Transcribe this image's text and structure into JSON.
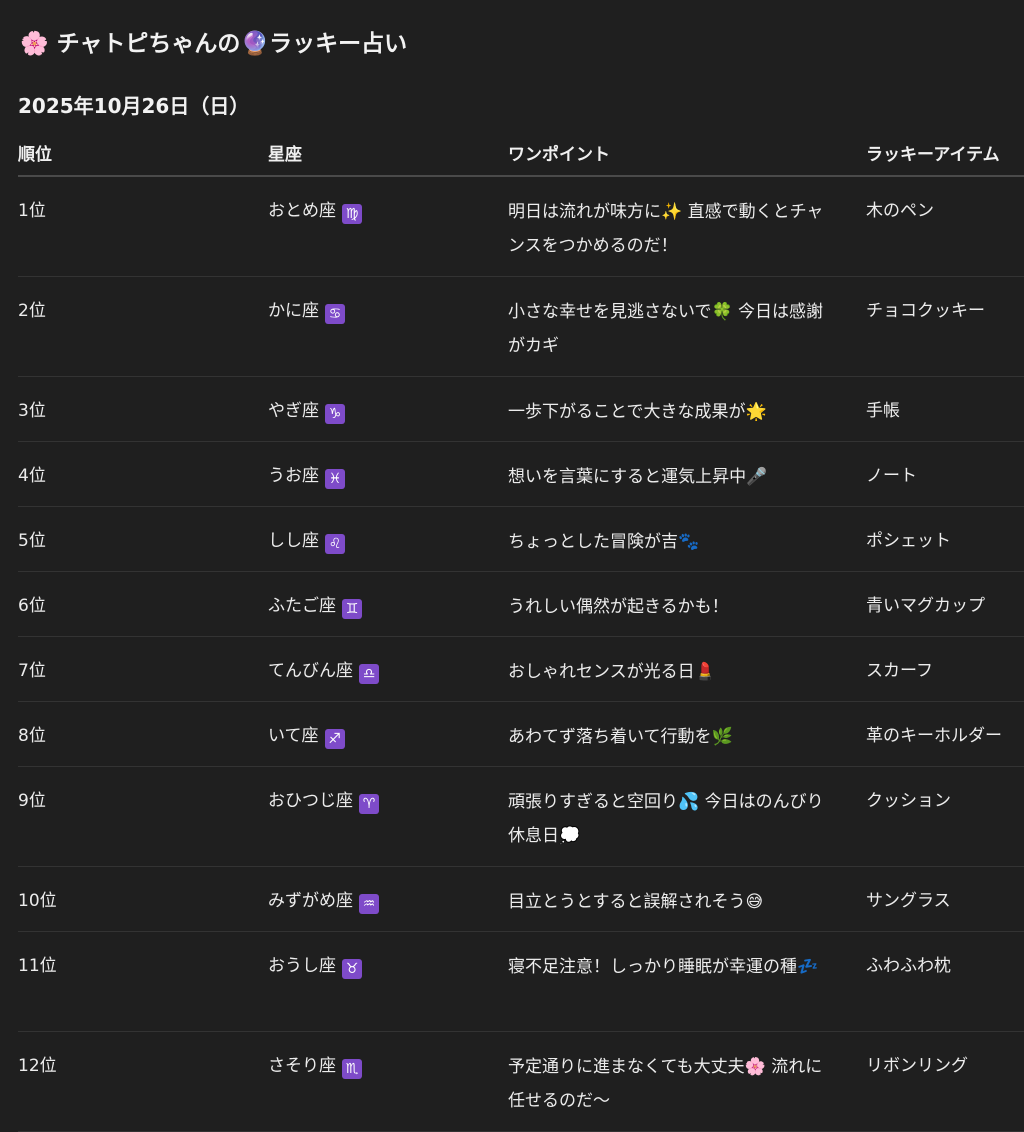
{
  "header": {
    "title_icon": "🌸",
    "title_part1": "チャトピちゃんの",
    "title_icon2": "🔮",
    "title_part2": "ラッキー占い",
    "date": "2025年10月26日（日）"
  },
  "columns": [
    "順位",
    "星座",
    "ワンポイント",
    "ラッキーアイテム"
  ],
  "rows": [
    {
      "rank": "1位",
      "sign": "おとめ座",
      "zodiac": "♍",
      "tip": "明日は流れが味方に✨ 直感で動くとチャンスをつかめるのだ！",
      "item": "木のペン"
    },
    {
      "rank": "2位",
      "sign": "かに座",
      "zodiac": "♋",
      "tip": "小さな幸せを見逃さないで🍀 今日は感謝がカギ",
      "item": "チョコクッキー"
    },
    {
      "rank": "3位",
      "sign": "やぎ座",
      "zodiac": "♑",
      "tip": "一歩下がることで大きな成果が🌟",
      "item": "手帳"
    },
    {
      "rank": "4位",
      "sign": "うお座",
      "zodiac": "♓",
      "tip": "想いを言葉にすると運気上昇中🎤",
      "item": "ノート"
    },
    {
      "rank": "5位",
      "sign": "しし座",
      "zodiac": "♌",
      "tip": "ちょっとした冒険が吉🐾",
      "item": "ポシェット"
    },
    {
      "rank": "6位",
      "sign": "ふたご座",
      "zodiac": "♊",
      "tip": "うれしい偶然が起きるかも！",
      "item": "青いマグカップ"
    },
    {
      "rank": "7位",
      "sign": "てんびん座",
      "zodiac": "♎",
      "tip": "おしゃれセンスが光る日💄",
      "item": "スカーフ"
    },
    {
      "rank": "8位",
      "sign": "いて座",
      "zodiac": "♐",
      "tip": "あわてず落ち着いて行動を🌿",
      "item": "革のキーホルダー"
    },
    {
      "rank": "9位",
      "sign": "おひつじ座",
      "zodiac": "♈",
      "tip": "頑張りすぎると空回り💦 今日はのんびり休息日💭",
      "item": "クッション"
    },
    {
      "rank": "10位",
      "sign": "みずがめ座",
      "zodiac": "♒",
      "tip": "目立とうとすると誤解されそう😅",
      "item": "サングラス"
    },
    {
      "rank": "11位",
      "sign": "おうし座",
      "zodiac": "♉",
      "tip": "寝不足注意！しっかり睡眠が幸運の種💤",
      "item": "ふわふわ枕"
    },
    {
      "rank": "12位",
      "sign": "さそり座",
      "zodiac": "♏",
      "tip": "予定通りに進まなくても大丈夫🌸 流れに任せるのだ〜",
      "item": "リボンリング"
    }
  ],
  "colors": {
    "background": "#1f1f1f",
    "text": "#ececec",
    "zodiac_badge": "#7e4bc9"
  }
}
